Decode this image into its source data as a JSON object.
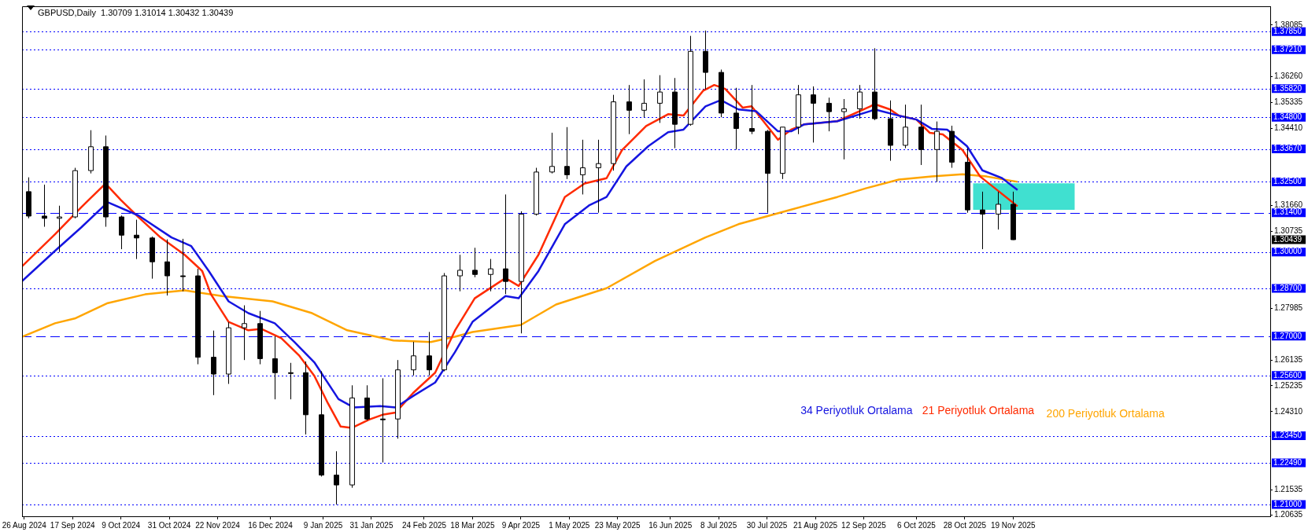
{
  "chart_data": {
    "type": "candlestick",
    "title": "GBPUSD,Daily  1.30709 1.31014 1.30432 1.30439",
    "colors": [
      "#000000",
      "#000000",
      "#ffffff",
      "#ffffff",
      "#ffffff",
      "#000000",
      "#000000",
      "#000000",
      "#000000",
      "#000000",
      "#000000",
      "#000000",
      "#000000",
      "#ffffff",
      "#ffffff",
      "#000000",
      "#000000",
      "#000000",
      "#000000",
      "#000000",
      "#000000",
      "#ffffff",
      "#000000",
      "#000000",
      "#ffffff",
      "#ffffff",
      "#000000",
      "#ffffff",
      "#ffffff",
      "#000000",
      "#ffffff",
      "#000000",
      "#ffffff",
      "#ffffff",
      "#ffffff",
      "#000000",
      "#ffffff",
      "#ffffff",
      "#ffffff",
      "#000000",
      "#ffffff",
      "#ffffff",
      "#000000",
      "#ffffff",
      "#000000",
      "#000000",
      "#000000",
      "#000000",
      "#000000",
      "#ffffff",
      "#ffffff",
      "#000000",
      "#000000",
      "#ffffff",
      "#ffffff",
      "#000000",
      "#000000",
      "#ffffff",
      "#000000",
      "#ffffff",
      "#000000",
      "#000000",
      "#000000",
      "#ffffff",
      "#000000"
    ],
    "x": [
      "2024-08-28",
      "2024-09-04",
      "2024-09-11",
      "2024-09-18",
      "2024-09-25",
      "2024-10-02",
      "2024-10-09",
      "2024-10-16",
      "2024-10-23",
      "2024-10-30",
      "2024-11-06",
      "2024-11-13",
      "2024-11-20",
      "2024-11-27",
      "2024-12-04",
      "2024-12-11",
      "2024-12-18",
      "2024-12-25",
      "2025-01-01",
      "2025-01-08",
      "2025-01-15",
      "2025-01-22",
      "2025-01-29",
      "2025-02-05",
      "2025-02-12",
      "2025-02-19",
      "2025-02-26",
      "2025-03-05",
      "2025-03-12",
      "2025-03-19",
      "2025-03-26",
      "2025-04-02",
      "2025-04-09",
      "2025-04-16",
      "2025-04-23",
      "2025-04-30",
      "2025-05-07",
      "2025-05-14",
      "2025-05-21",
      "2025-05-28",
      "2025-06-04",
      "2025-06-11",
      "2025-06-18",
      "2025-06-25",
      "2025-07-02",
      "2025-07-09",
      "2025-07-16",
      "2025-07-23",
      "2025-07-30",
      "2025-08-06",
      "2025-08-13",
      "2025-08-20",
      "2025-08-27",
      "2025-09-03",
      "2025-09-10",
      "2025-09-17",
      "2025-09-24",
      "2025-10-01",
      "2025-10-08",
      "2025-10-15",
      "2025-10-22",
      "2025-10-29",
      "2025-11-05",
      "2025-11-12",
      "2025-11-19"
    ],
    "ohlc": [
      [
        1.3215,
        1.3266,
        1.312,
        1.3128
      ],
      [
        1.3128,
        1.324,
        1.309,
        1.312
      ],
      [
        1.312,
        1.3165,
        1.3,
        1.3125
      ],
      [
        1.3125,
        1.33,
        1.312,
        1.329
      ],
      [
        1.329,
        1.3434,
        1.328,
        1.3375
      ],
      [
        1.3375,
        1.3415,
        1.309,
        1.3125
      ],
      [
        1.3125,
        1.313,
        1.301,
        1.306
      ],
      [
        1.306,
        1.3115,
        1.2975,
        1.305
      ],
      [
        1.305,
        1.3055,
        1.2905,
        1.2965
      ],
      [
        1.2965,
        1.3045,
        1.2845,
        1.2915
      ],
      [
        1.2915,
        1.3047,
        1.286,
        1.2915
      ],
      [
        1.2915,
        1.294,
        1.26,
        1.2625
      ],
      [
        1.2625,
        1.272,
        1.249,
        1.2565
      ],
      [
        1.2565,
        1.275,
        1.253,
        1.273
      ],
      [
        1.273,
        1.281,
        1.2615,
        1.2745
      ],
      [
        1.2745,
        1.279,
        1.26,
        1.262
      ],
      [
        1.262,
        1.27,
        1.2475,
        1.257
      ],
      [
        1.257,
        1.2605,
        1.2475,
        1.257
      ],
      [
        1.257,
        1.261,
        1.235,
        1.242
      ],
      [
        1.242,
        1.2575,
        1.22,
        1.2205
      ],
      [
        1.2205,
        1.229,
        1.21,
        1.217
      ],
      [
        1.217,
        1.2525,
        1.216,
        1.248
      ],
      [
        1.248,
        1.2525,
        1.24,
        1.2405
      ],
      [
        1.2405,
        1.255,
        1.225,
        1.2405
      ],
      [
        1.2405,
        1.2615,
        1.2335,
        1.258
      ],
      [
        1.258,
        1.268,
        1.256,
        1.263
      ],
      [
        1.263,
        1.2715,
        1.256,
        1.258
      ],
      [
        1.258,
        1.2925,
        1.2575,
        1.2915
      ],
      [
        1.2915,
        1.299,
        1.286,
        1.2935
      ],
      [
        1.2935,
        1.3015,
        1.291,
        1.292
      ],
      [
        1.292,
        1.2975,
        1.286,
        1.294
      ],
      [
        1.294,
        1.3205,
        1.285,
        1.2895
      ],
      [
        1.2895,
        1.3145,
        1.271,
        1.3135
      ],
      [
        1.3135,
        1.33,
        1.313,
        1.3285
      ],
      [
        1.3285,
        1.3425,
        1.328,
        1.3305
      ],
      [
        1.3305,
        1.3445,
        1.326,
        1.3275
      ],
      [
        1.3275,
        1.34,
        1.3205,
        1.33
      ],
      [
        1.33,
        1.34,
        1.314,
        1.3315
      ],
      [
        1.3315,
        1.356,
        1.329,
        1.3535
      ],
      [
        1.3535,
        1.3595,
        1.342,
        1.3505
      ],
      [
        1.3505,
        1.3615,
        1.348,
        1.353
      ],
      [
        1.353,
        1.363,
        1.346,
        1.357
      ],
      [
        1.357,
        1.362,
        1.337,
        1.3455
      ],
      [
        1.3455,
        1.377,
        1.345,
        1.3715
      ],
      [
        1.3715,
        1.3789,
        1.358,
        1.364
      ],
      [
        1.364,
        1.365,
        1.348,
        1.3495
      ],
      [
        1.3495,
        1.3585,
        1.3365,
        1.344
      ],
      [
        1.344,
        1.3595,
        1.342,
        1.343
      ],
      [
        1.343,
        1.3435,
        1.314,
        1.328
      ],
      [
        1.328,
        1.3445,
        1.326,
        1.3445
      ],
      [
        1.3445,
        1.3595,
        1.342,
        1.356
      ],
      [
        1.356,
        1.359,
        1.339,
        1.353
      ],
      [
        1.353,
        1.355,
        1.343,
        1.35
      ],
      [
        1.35,
        1.3545,
        1.333,
        1.351
      ],
      [
        1.351,
        1.3595,
        1.3475,
        1.357
      ],
      [
        1.357,
        1.3726,
        1.347,
        1.3475
      ],
      [
        1.3475,
        1.354,
        1.3325,
        1.338
      ],
      [
        1.338,
        1.3525,
        1.337,
        1.3445
      ],
      [
        1.3445,
        1.3525,
        1.331,
        1.3365
      ],
      [
        1.3365,
        1.3465,
        1.325,
        1.343
      ],
      [
        1.343,
        1.345,
        1.33,
        1.332
      ],
      [
        1.332,
        1.337,
        1.314,
        1.315
      ],
      [
        1.315,
        1.3215,
        1.301,
        1.3135
      ],
      [
        1.3135,
        1.3215,
        1.308,
        1.317
      ],
      [
        1.317,
        1.3215,
        1.3043,
        1.30439
      ]
    ],
    "series": [
      {
        "name": "34 Periyotluk Ortalama",
        "type": "line",
        "color": "#1515e0",
        "x": [
          "2024-08-25",
          "2024-09-09",
          "2024-09-21",
          "2024-10-03",
          "2024-10-17",
          "2024-11-01",
          "2024-11-10",
          "2024-11-18",
          "2024-11-27",
          "2024-12-06",
          "2024-12-18",
          "2024-12-27",
          "2025-01-05",
          "2025-01-16",
          "2025-01-23",
          "2025-02-04",
          "2025-02-11",
          "2025-02-19",
          "2025-03-01",
          "2025-03-10",
          "2025-03-18",
          "2025-04-02",
          "2025-04-08",
          "2025-04-17",
          "2025-04-29",
          "2025-05-10",
          "2025-05-18",
          "2025-05-27",
          "2025-06-06",
          "2025-06-15",
          "2025-06-22",
          "2025-07-02",
          "2025-07-09",
          "2025-07-17",
          "2025-07-25",
          "2025-08-04",
          "2025-08-10",
          "2025-08-16",
          "2025-08-31",
          "2025-09-15",
          "2025-09-17",
          "2025-09-28",
          "2025-10-06",
          "2025-10-13",
          "2025-10-20",
          "2025-10-29",
          "2025-11-05",
          "2025-11-14",
          "2025-11-21"
        ],
        "values": [
          1.2896,
          1.3004,
          1.3088,
          1.3177,
          1.313,
          1.3052,
          1.3021,
          1.2932,
          1.2824,
          1.2782,
          1.2746,
          1.2679,
          1.2607,
          1.2476,
          1.2446,
          1.2451,
          1.2446,
          1.2487,
          1.2535,
          1.2643,
          1.2751,
          1.2843,
          1.2835,
          1.2932,
          1.3099,
          1.3166,
          1.3196,
          1.3305,
          1.3377,
          1.3427,
          1.3436,
          1.3519,
          1.3541,
          1.3508,
          1.3502,
          1.343,
          1.343,
          1.3455,
          1.3466,
          1.3502,
          1.3508,
          1.3486,
          1.3472,
          1.3439,
          1.3436,
          1.3377,
          1.3291,
          1.3263,
          1.3221
        ]
      },
      {
        "name": "21 Periyotluk Ortalama",
        "type": "line",
        "color": "#ff2a00",
        "x": [
          "2024-08-25",
          "2024-09-09",
          "2024-09-21",
          "2024-10-02",
          "2024-10-09",
          "2024-10-17",
          "2024-10-27",
          "2024-11-07",
          "2024-11-15",
          "2024-11-19",
          "2024-11-27",
          "2024-12-06",
          "2024-12-12",
          "2024-12-21",
          "2024-12-29",
          "2025-01-05",
          "2025-01-11",
          "2025-01-17",
          "2025-01-22",
          "2025-01-30",
          "2025-02-05",
          "2025-02-11",
          "2025-02-19",
          "2025-03-01",
          "2025-03-10",
          "2025-03-19",
          "2025-04-02",
          "2025-04-08",
          "2025-04-17",
          "2025-04-29",
          "2025-05-08",
          "2025-05-18",
          "2025-05-25",
          "2025-06-05",
          "2025-06-15",
          "2025-06-22",
          "2025-07-01",
          "2025-07-06",
          "2025-07-11",
          "2025-07-19",
          "2025-07-23",
          "2025-08-04",
          "2025-08-10",
          "2025-08-16",
          "2025-08-31",
          "2025-09-15",
          "2025-09-17",
          "2025-09-24",
          "2025-09-28",
          "2025-10-06",
          "2025-10-12",
          "2025-10-18",
          "2025-10-27",
          "2025-11-04",
          "2025-11-13",
          "2025-11-21"
        ],
        "values": [
          1.2949,
          1.3063,
          1.316,
          1.3244,
          1.3185,
          1.3124,
          1.3052,
          1.299,
          1.2932,
          1.2849,
          1.2751,
          1.2721,
          1.2726,
          1.2693,
          1.2632,
          1.2559,
          1.2464,
          1.2378,
          1.2373,
          1.2403,
          1.242,
          1.2428,
          1.2498,
          1.257,
          1.272,
          1.2835,
          1.2907,
          1.2879,
          1.299,
          1.3196,
          1.3244,
          1.3263,
          1.3363,
          1.3449,
          1.3491,
          1.3486,
          1.3575,
          1.3595,
          1.3581,
          1.3514,
          1.3519,
          1.34,
          1.3436,
          1.3455,
          1.3466,
          1.3519,
          1.3527,
          1.3508,
          1.3486,
          1.3472,
          1.3425,
          1.3419,
          1.3363,
          1.3269,
          1.3213,
          1.3163
        ]
      },
      {
        "name": "200 Periyotluk Ortalama",
        "type": "line",
        "color": "#ffa500",
        "x": [
          "2024-08-25",
          "2024-09-09",
          "2024-09-18",
          "2024-10-03",
          "2024-10-20",
          "2024-11-07",
          "2024-11-24",
          "2024-12-17",
          "2025-01-04",
          "2025-01-20",
          "2025-02-10",
          "2025-02-27",
          "2025-03-10",
          "2025-03-18",
          "2025-04-09",
          "2025-04-25",
          "2025-05-18",
          "2025-06-09",
          "2025-07-02",
          "2025-07-17",
          "2025-08-09",
          "2025-08-31",
          "2025-09-13",
          "2025-09-28",
          "2025-10-13",
          "2025-10-27",
          "2025-11-07",
          "2025-11-21"
        ],
        "values": [
          1.2698,
          1.2746,
          1.2763,
          1.2818,
          1.2849,
          1.2863,
          1.2843,
          1.2824,
          1.2782,
          1.2721,
          1.2685,
          1.2679,
          1.2698,
          1.2715,
          1.274,
          1.2813,
          1.2871,
          1.2968,
          1.3052,
          1.3099,
          1.3149,
          1.3196,
          1.3227,
          1.3258,
          1.3269,
          1.3277,
          1.3269,
          1.325
        ]
      }
    ],
    "xlim": [
      "2024-08-25",
      "2026-03-16"
    ],
    "xticks": [
      {
        "value": "2024-08-26",
        "label": "26 Aug 2024"
      },
      {
        "value": "2024-09-17",
        "label": "17 Sep 2024"
      },
      {
        "value": "2024-10-09",
        "label": "9 Oct 2024"
      },
      {
        "value": "2024-10-31",
        "label": "31 Oct 2024"
      },
      {
        "value": "2024-11-22",
        "label": "22 Nov 2024"
      },
      {
        "value": "2024-12-16",
        "label": "16 Dec 2024"
      },
      {
        "value": "2025-01-09",
        "label": "9 Jan 2025"
      },
      {
        "value": "2025-01-31",
        "label": "31 Jan 2025"
      },
      {
        "value": "2025-02-24",
        "label": "24 Feb 2025"
      },
      {
        "value": "2025-03-18",
        "label": "18 Mar 2025"
      },
      {
        "value": "2025-04-09",
        "label": "9 Apr 2025"
      },
      {
        "value": "2025-05-01",
        "label": "1 May 2025"
      },
      {
        "value": "2025-05-23",
        "label": "23 May 2025"
      },
      {
        "value": "2025-06-16",
        "label": "16 Jun 2025"
      },
      {
        "value": "2025-07-08",
        "label": "8 Jul 2025"
      },
      {
        "value": "2025-07-30",
        "label": "30 Jul 2025"
      },
      {
        "value": "2025-08-21",
        "label": "21 Aug 2025"
      },
      {
        "value": "2025-09-12",
        "label": "12 Sep 2025"
      },
      {
        "value": "2025-10-06",
        "label": "6 Oct 2025"
      },
      {
        "value": "2025-10-28",
        "label": "28 Oct 2025"
      },
      {
        "value": "2025-11-19",
        "label": "19 Nov 2025"
      }
    ],
    "ylim": [
      1.20583,
      1.38755
    ],
    "yticks": [
      {
        "value": 1.38085,
        "label": "1.38085"
      },
      {
        "value": 1.3626,
        "label": "1.36260"
      },
      {
        "value": 1.35335,
        "label": "1.35335"
      },
      {
        "value": 1.3441,
        "label": "1.34410"
      },
      {
        "value": 1.3166,
        "label": "1.31660"
      },
      {
        "value": 1.30735,
        "label": "1.30735"
      },
      {
        "value": 1.27985,
        "label": "1.27985"
      },
      {
        "value": 1.26135,
        "label": "1.26135"
      },
      {
        "value": 1.25235,
        "label": "1.25235"
      },
      {
        "value": 1.2431,
        "label": "1.24310"
      },
      {
        "value": 1.21535,
        "label": "1.21535"
      },
      {
        "value": 1.20635,
        "label": "1.20635"
      }
    ],
    "ref_lines": [
      {
        "axis": "y",
        "value": 1.3785,
        "label": "1.37850",
        "color": "#0000ff",
        "line_style": "dotted"
      },
      {
        "axis": "y",
        "value": 1.3721,
        "label": "1.37210",
        "color": "#0000ff",
        "line_style": "dotted"
      },
      {
        "axis": "y",
        "value": 1.3582,
        "label": "1.35820",
        "color": "#0000ff",
        "line_style": "dotted"
      },
      {
        "axis": "y",
        "value": 1.348,
        "label": "1.34800",
        "color": "#0000ff",
        "line_style": "dotted"
      },
      {
        "axis": "y",
        "value": 1.3367,
        "label": "1.33670",
        "color": "#0000ff",
        "line_style": "dotted"
      },
      {
        "axis": "y",
        "value": 1.325,
        "label": "1.32500",
        "color": "#0000ff",
        "line_style": "dotted"
      },
      {
        "axis": "y",
        "value": 1.314,
        "label": "1.31400",
        "color": "#0000ff",
        "line_style": "dashed"
      },
      {
        "axis": "y",
        "value": 1.3,
        "label": "1.30000",
        "color": "#0000ff",
        "line_style": "dotted"
      },
      {
        "axis": "y",
        "value": 1.287,
        "label": "1.28700",
        "color": "#0000ff",
        "line_style": "dotted"
      },
      {
        "axis": "y",
        "value": 1.27,
        "label": "1.27000",
        "color": "#0000ff",
        "line_style": "dashed"
      },
      {
        "axis": "y",
        "value": 1.256,
        "label": "1.25600",
        "color": "#0000ff",
        "line_style": "dotted"
      },
      {
        "axis": "y",
        "value": 1.2345,
        "label": "1.23450",
        "color": "#0000ff",
        "line_style": "dotted"
      },
      {
        "axis": "y",
        "value": 1.2249,
        "label": "1.22490",
        "color": "#0000ff",
        "line_style": "dotted"
      },
      {
        "axis": "y",
        "value": 1.21,
        "label": "1.21000",
        "color": "#0000ff",
        "line_style": "dotted"
      }
    ],
    "bands": [
      {
        "axis": "y",
        "from": 1.315,
        "to": 1.3245,
        "color": "#40e0d0"
      }
    ],
    "annotations": [
      "1.30439"
    ],
    "grid": false,
    "legend": false,
    "marker": "none"
  }
}
